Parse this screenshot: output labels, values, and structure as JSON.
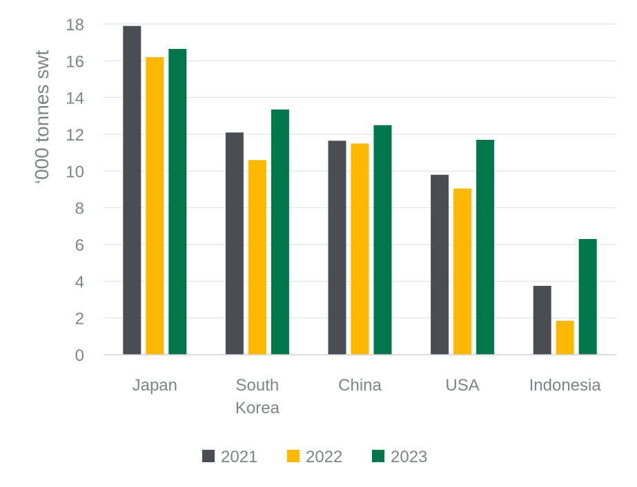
{
  "chart_data": {
    "type": "bar",
    "title": "",
    "xlabel": "",
    "ylabel": "‘000 tonnes swt",
    "ylim": [
      0,
      18
    ],
    "yticks": [
      0,
      2,
      4,
      6,
      8,
      10,
      12,
      14,
      16,
      18
    ],
    "grid": "horizontal",
    "legend_position": "bottom",
    "categories": [
      [
        "Japan"
      ],
      [
        "South",
        "Korea"
      ],
      [
        "China"
      ],
      [
        "USA"
      ],
      [
        "Indonesia"
      ]
    ],
    "series": [
      {
        "name": "2021",
        "color": "#4a4d52",
        "values": [
          17.9,
          12.1,
          11.65,
          9.8,
          3.75
        ]
      },
      {
        "name": "2022",
        "color": "#ffb800",
        "values": [
          16.2,
          10.6,
          11.5,
          9.05,
          1.85
        ]
      },
      {
        "name": "2023",
        "color": "#00774a",
        "values": [
          16.65,
          13.35,
          12.5,
          11.7,
          6.3
        ]
      }
    ]
  }
}
